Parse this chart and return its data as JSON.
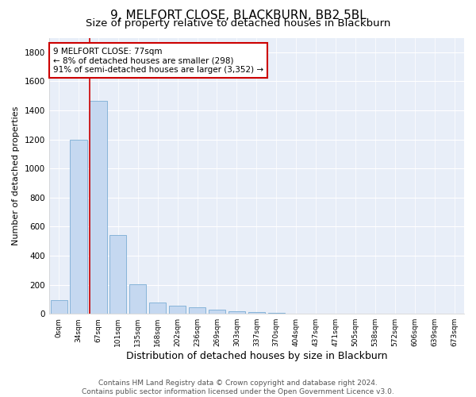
{
  "title": "9, MELFORT CLOSE, BLACKBURN, BB2 5BL",
  "subtitle": "Size of property relative to detached houses in Blackburn",
  "xlabel": "Distribution of detached houses by size in Blackburn",
  "ylabel": "Number of detached properties",
  "bar_color": "#c5d8f0",
  "bar_edge_color": "#7aadd4",
  "background_color": "#e8eef8",
  "grid_color": "#ffffff",
  "fig_background_color": "#ffffff",
  "categories": [
    "0sqm",
    "34sqm",
    "67sqm",
    "101sqm",
    "135sqm",
    "168sqm",
    "202sqm",
    "236sqm",
    "269sqm",
    "303sqm",
    "337sqm",
    "370sqm",
    "404sqm",
    "437sqm",
    "471sqm",
    "505sqm",
    "538sqm",
    "572sqm",
    "606sqm",
    "639sqm",
    "673sqm"
  ],
  "values": [
    95,
    1200,
    1465,
    540,
    205,
    75,
    55,
    45,
    30,
    20,
    10,
    5,
    2,
    0,
    0,
    0,
    0,
    0,
    0,
    0,
    0
  ],
  "ylim": [
    0,
    1900
  ],
  "yticks": [
    0,
    200,
    400,
    600,
    800,
    1000,
    1200,
    1400,
    1600,
    1800
  ],
  "vline_x_index": 2,
  "vline_color": "#cc0000",
  "annotation_text": "9 MELFORT CLOSE: 77sqm\n← 8% of detached houses are smaller (298)\n91% of semi-detached houses are larger (3,352) →",
  "annotation_box_color": "#ffffff",
  "annotation_box_edgecolor": "#cc0000",
  "footer_text": "Contains HM Land Registry data © Crown copyright and database right 2024.\nContains public sector information licensed under the Open Government Licence v3.0.",
  "title_fontsize": 11,
  "subtitle_fontsize": 9.5,
  "xlabel_fontsize": 9,
  "ylabel_fontsize": 8,
  "footer_fontsize": 6.5
}
